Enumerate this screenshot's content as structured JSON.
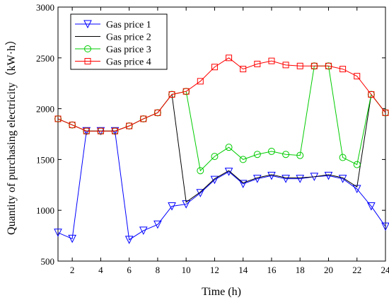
{
  "chart_data": {
    "type": "line",
    "xlabel": "Time (h)",
    "ylabel": "Quantity of purchasing electricity（kW·h）",
    "xlim": [
      1,
      24
    ],
    "ylim": [
      500,
      3000
    ],
    "xticks": [
      2,
      4,
      6,
      8,
      10,
      12,
      14,
      16,
      18,
      20,
      22,
      24
    ],
    "yticks": [
      500,
      1000,
      1500,
      2000,
      2500,
      3000
    ],
    "grid": false,
    "legend_position": "top-left",
    "x": [
      1,
      2,
      3,
      4,
      5,
      6,
      7,
      8,
      9,
      10,
      11,
      12,
      13,
      14,
      15,
      16,
      17,
      18,
      19,
      20,
      21,
      22,
      23,
      24
    ],
    "series": [
      {
        "name": "Gas price 1",
        "color": "#0000ff",
        "marker": "triangle-down",
        "values": [
          780,
          720,
          1780,
          1780,
          1780,
          710,
          800,
          860,
          1040,
          1060,
          1170,
          1300,
          1380,
          1260,
          1310,
          1340,
          1310,
          1310,
          1330,
          1340,
          1310,
          1210,
          1040,
          840
        ]
      },
      {
        "name": "Gas price 2",
        "color": "#000000",
        "marker": "none",
        "values": [
          1900,
          1840,
          1780,
          1780,
          1780,
          1830,
          1900,
          1960,
          2140,
          1080,
          1180,
          1310,
          1390,
          1270,
          1320,
          1350,
          1320,
          1320,
          1330,
          1350,
          1320,
          1230,
          2140,
          1960
        ]
      },
      {
        "name": "Gas price 3",
        "color": "#00cc00",
        "marker": "circle",
        "values": [
          1900,
          1840,
          1780,
          1780,
          1780,
          1830,
          1900,
          1960,
          2140,
          2170,
          1390,
          1530,
          1620,
          1500,
          1550,
          1580,
          1550,
          1540,
          2420,
          2420,
          1520,
          1450,
          2140,
          1960
        ]
      },
      {
        "name": "Gas price 4",
        "color": "#ff0000",
        "marker": "square",
        "values": [
          1900,
          1840,
          1780,
          1780,
          1780,
          1830,
          1900,
          1960,
          2140,
          2170,
          2270,
          2410,
          2500,
          2390,
          2440,
          2470,
          2430,
          2420,
          2420,
          2420,
          2390,
          2320,
          2140,
          1960
        ]
      }
    ]
  }
}
